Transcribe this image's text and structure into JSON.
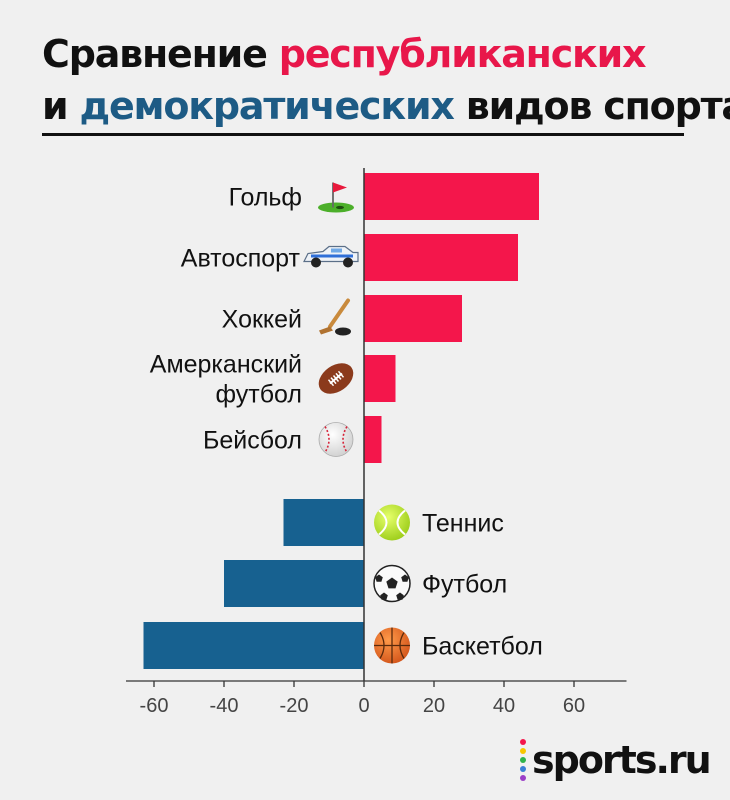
{
  "title": {
    "line1_prefix": "Сравнение ",
    "line1_highlight": "республиканских",
    "line2_prefix": "и ",
    "line2_highlight": "демократических",
    "line2_suffix": " видов спорта"
  },
  "colors": {
    "republican": "#f4164b",
    "democratic": "#176190",
    "axis": "#333333",
    "text": "#111111"
  },
  "chart_data": {
    "type": "bar",
    "orientation": "horizontal",
    "categories": [
      "Гольф",
      "Автоспорт",
      "Хоккей",
      "Амерканский футбол",
      "Бейсбол",
      "Теннис",
      "Футбол",
      "Баскетбол"
    ],
    "category_lines": [
      [
        "Гольф"
      ],
      [
        "Автоспорт"
      ],
      [
        "Хоккей"
      ],
      [
        "Амерканский",
        "футбол"
      ],
      [
        "Бейсбол"
      ],
      [
        "Теннис"
      ],
      [
        "Футбол"
      ],
      [
        "Баскетбол"
      ]
    ],
    "icons": [
      "golf-flag-icon",
      "race-car-icon",
      "hockey-stick-icon",
      "american-football-icon",
      "baseball-icon",
      "tennis-ball-icon",
      "soccer-ball-icon",
      "basketball-icon"
    ],
    "values": [
      50,
      44,
      28,
      9,
      5,
      -23,
      -40,
      -63
    ],
    "xlim": [
      -68,
      75
    ],
    "xticks": [
      -60,
      -40,
      -20,
      0,
      20,
      40,
      60
    ],
    "xtick_labels": [
      "-60",
      "-40",
      "-20",
      "0",
      "20",
      "40",
      "60"
    ],
    "grid": false,
    "legend": "none"
  },
  "logo": {
    "text": "sports.ru",
    "dot_colors": [
      "#f4164b",
      "#f7c600",
      "#2fb34a",
      "#3a7fd5",
      "#9b3fc8"
    ]
  }
}
